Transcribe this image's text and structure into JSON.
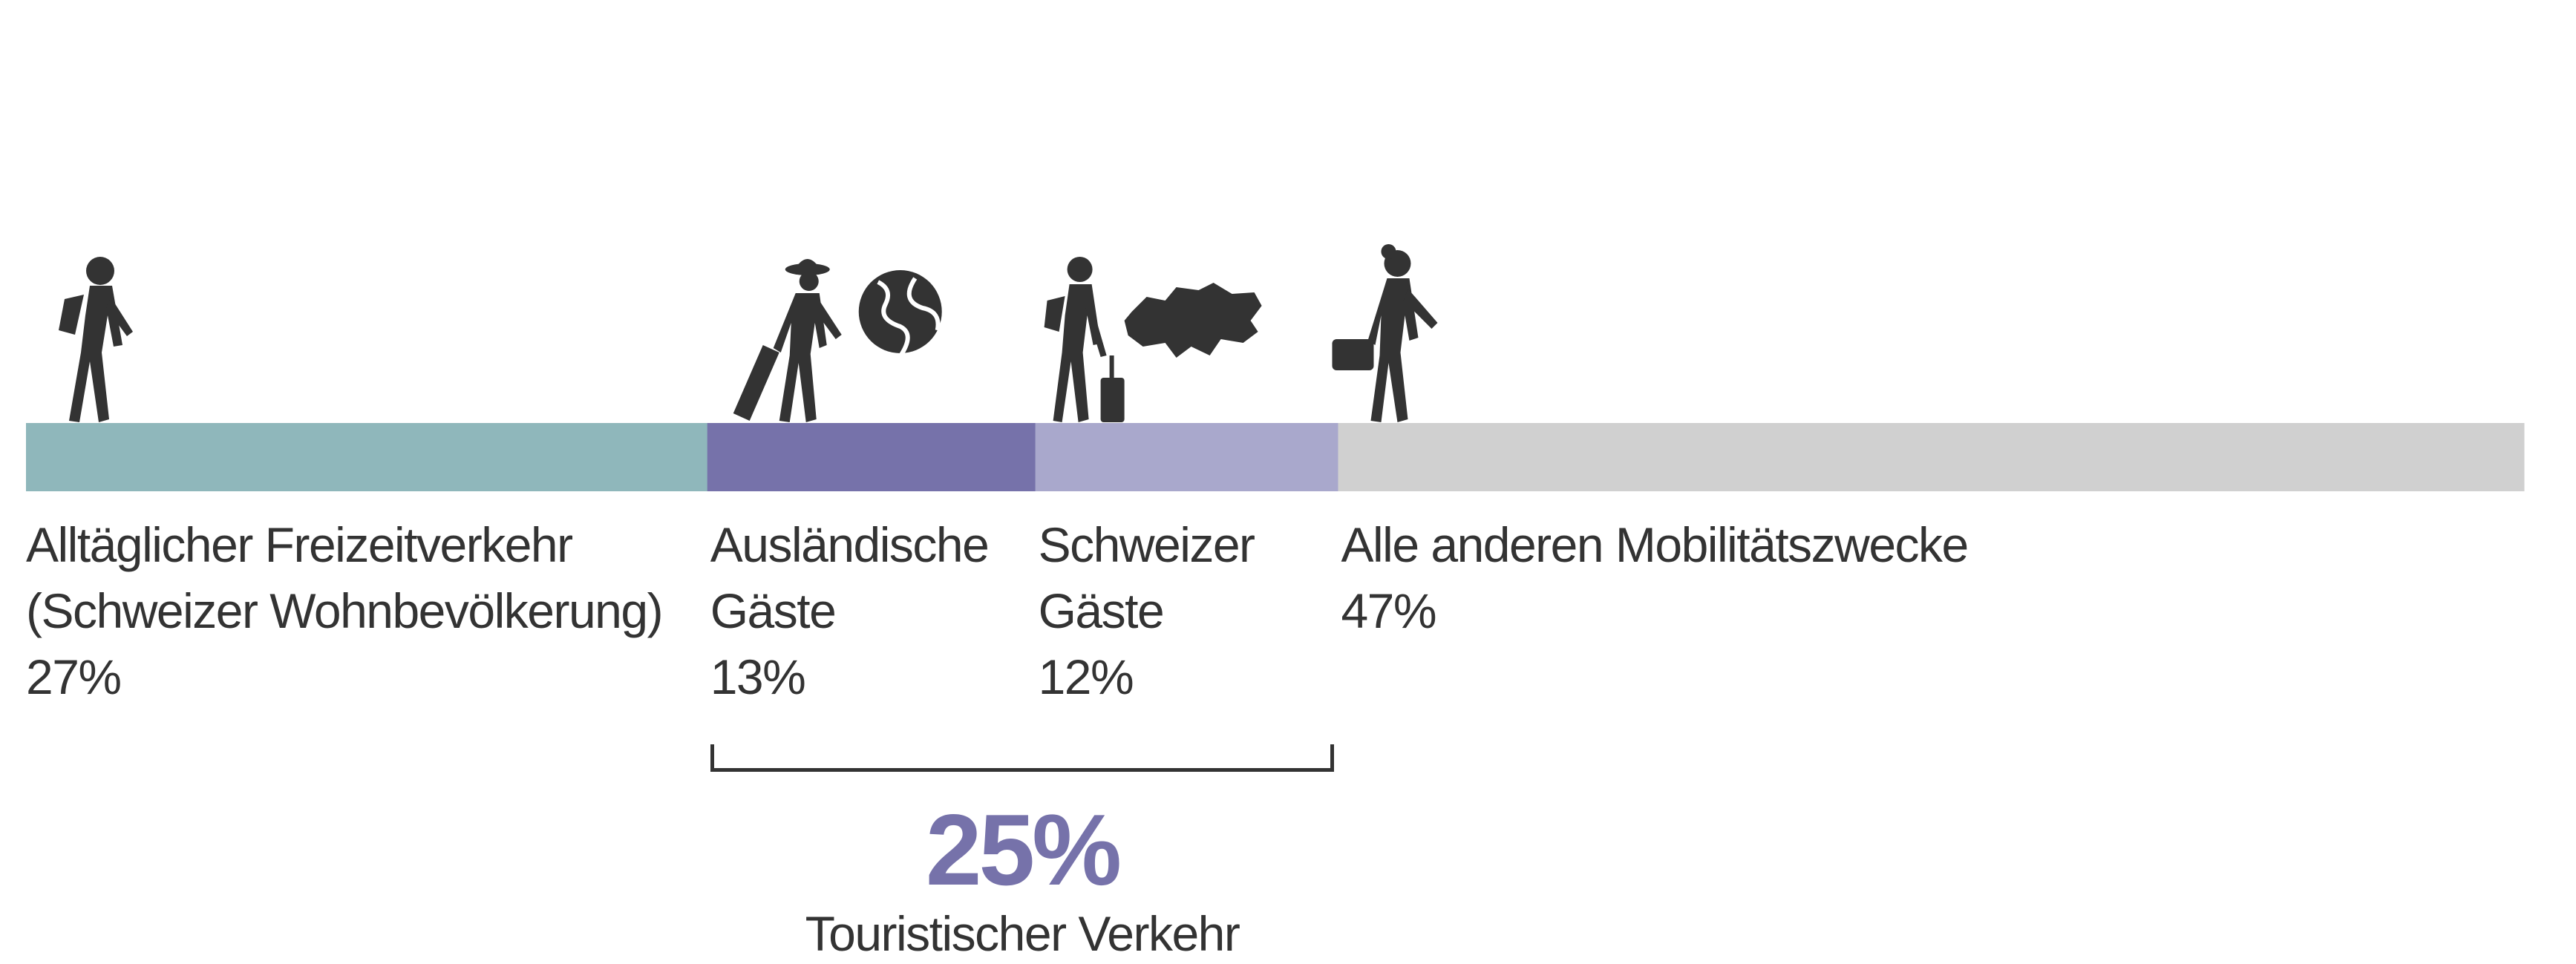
{
  "chart_data": {
    "type": "stacked-bar",
    "orientation": "horizontal",
    "unit": "%",
    "segments": [
      {
        "label_lines": [
          "Alltäglicher Freizeitverkehr",
          "(Schweizer Wohnbevölkerung)"
        ],
        "value": 27,
        "value_label": "27%",
        "color": "#8fb7bb",
        "icon": "hiker-with-backpack-icon"
      },
      {
        "label_lines": [
          "Ausländische",
          "Gäste"
        ],
        "value": 13,
        "value_label": "13%",
        "color": "#7672aa",
        "icon": "tourist-with-suitcase-and-globe-icon"
      },
      {
        "label_lines": [
          "Schweizer",
          "Gäste"
        ],
        "value": 12,
        "value_label": "12%",
        "color": "#a9a8cc",
        "icon": "traveler-with-switzerland-map-icon"
      },
      {
        "label_lines": [
          "Alle anderen Mobilitätszwecke"
        ],
        "value": 47,
        "value_label": "47%",
        "color": "#d0d0d0",
        "icon": "commuter-with-briefcase-icon"
      }
    ],
    "bracket": {
      "from_segment": 1,
      "to_segment": 2,
      "value": 25,
      "value_label": "25%",
      "label": "Touristischer Verkehr",
      "color": "#7672aa"
    }
  }
}
